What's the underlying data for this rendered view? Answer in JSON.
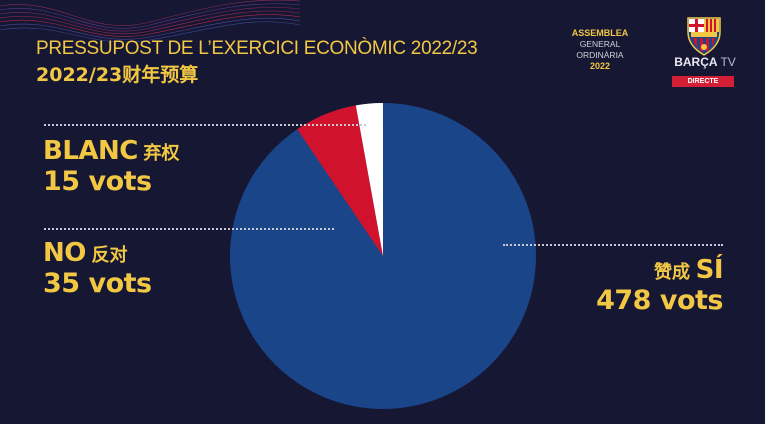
{
  "header": {
    "title_catalan": "PRESSUPOST DE L’EXERCICI ECONÒMIC 2022/23",
    "title_chinese": "2022/23财年预算"
  },
  "branding": {
    "assembly_line1": "ASSEMBLEA",
    "assembly_line2": "GENERAL ORDINÀRIA",
    "assembly_line3": "2022",
    "crest_text": "FCB",
    "channel_name": "BARÇA",
    "channel_suffix": "TV",
    "live_badge": "DIRECTE"
  },
  "labels": {
    "blanc": {
      "name": "BLANC",
      "name_zh": "弃权",
      "votes": "15 vots"
    },
    "no": {
      "name": "NO",
      "name_zh": "反对",
      "votes": "35 vots"
    },
    "si": {
      "name": "SÍ",
      "name_zh": "赞成",
      "votes": "478 vots"
    }
  },
  "colors": {
    "background": "#161733",
    "accent_yellow": "#f2c744",
    "si_blue": "#1b4589",
    "no_red": "#d0122d",
    "blanc_white": "#ffffff"
  },
  "chart_data": {
    "type": "pie",
    "title": "PRESSUPOST DE L’EXERCICI ECONÒMIC 2022/23",
    "subtitle": "2022/23财年预算",
    "categories": [
      "SÍ (赞成)",
      "NO (反对)",
      "BLANC (弃权)"
    ],
    "values": [
      478,
      35,
      15
    ],
    "colors": [
      "#1b4589",
      "#d0122d",
      "#ffffff"
    ],
    "unit": "vots",
    "start_angle": "12 o'clock, clockwise: SÍ, then NO, then BLANC",
    "legend_position": "labels with dotted leader lines"
  }
}
